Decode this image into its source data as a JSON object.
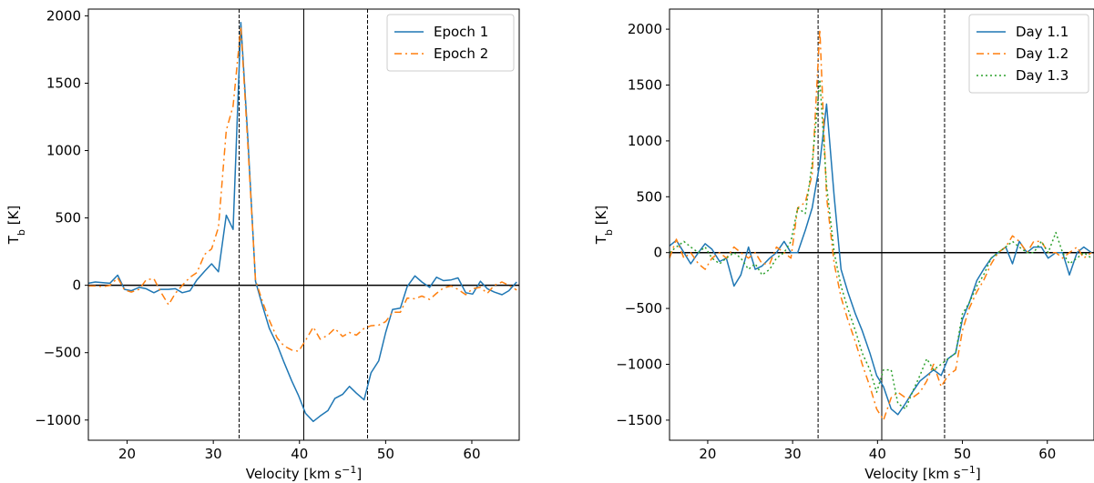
{
  "chart_data": [
    {
      "type": "line",
      "xlabel": "Velocity [km s$^{-1}$]",
      "ylabel": "T$_b$ [K]",
      "xlim": [
        15.5,
        65.5
      ],
      "ylim": [
        -1150,
        2050
      ],
      "xticks": [
        20,
        30,
        40,
        50,
        60
      ],
      "yticks": [
        -1000,
        -500,
        0,
        500,
        1000,
        1500,
        2000
      ],
      "ytick_labels": [
        "−1000",
        "−500",
        "0",
        "500",
        "1000",
        "1500",
        "2000"
      ],
      "hlines": [
        0
      ],
      "vlines": [
        {
          "x": 33.0,
          "style": "dashed"
        },
        {
          "x": 40.5,
          "style": "solid"
        },
        {
          "x": 47.9,
          "style": "dashed"
        }
      ],
      "legend_position": "top-right",
      "grid": false,
      "x": [
        15.5,
        16.3,
        17.2,
        18.0,
        18.9,
        19.7,
        20.5,
        21.4,
        22.2,
        23.1,
        23.9,
        24.8,
        25.6,
        26.4,
        27.3,
        28.1,
        29.0,
        29.8,
        30.6,
        31.5,
        32.3,
        33.2,
        34.0,
        34.9,
        35.7,
        36.5,
        37.4,
        38.2,
        39.1,
        39.9,
        40.7,
        41.6,
        42.4,
        43.3,
        44.1,
        45.0,
        45.8,
        46.6,
        47.5,
        48.3,
        49.2,
        50.0,
        50.8,
        51.7,
        52.5,
        53.4,
        54.2,
        55.1,
        55.9,
        56.7,
        57.6,
        58.4,
        59.3,
        60.1,
        61.0,
        61.8,
        62.6,
        63.5,
        64.3,
        65.2
      ],
      "series": [
        {
          "name": "Epoch 1",
          "color": "#1f77b4",
          "dash": "solid",
          "values": [
            15,
            25,
            20,
            15,
            75,
            -30,
            -40,
            -15,
            -25,
            -55,
            -30,
            -30,
            -25,
            -55,
            -40,
            40,
            105,
            160,
            100,
            520,
            415,
            1950,
            1100,
            30,
            -150,
            -320,
            -440,
            -570,
            -710,
            -820,
            -950,
            -1010,
            -970,
            -930,
            -840,
            -810,
            -750,
            -800,
            -850,
            -650,
            -560,
            -350,
            -180,
            -170,
            -10,
            70,
            25,
            -15,
            60,
            35,
            40,
            55,
            -55,
            -65,
            30,
            -25,
            -50,
            -70,
            -40,
            25
          ]
        },
        {
          "name": "Epoch 2",
          "color": "#ff7f0e",
          "dash": "8,4,2,4",
          "values": [
            -5,
            -5,
            -10,
            0,
            55,
            -35,
            -50,
            -30,
            40,
            50,
            -50,
            -145,
            -60,
            0,
            60,
            95,
            230,
            270,
            430,
            1150,
            1330,
            1920,
            1050,
            40,
            -120,
            -260,
            -390,
            -450,
            -480,
            -490,
            -410,
            -310,
            -400,
            -370,
            -320,
            -380,
            -350,
            -370,
            -320,
            -300,
            -295,
            -270,
            -200,
            -200,
            -95,
            -100,
            -80,
            -105,
            -60,
            -20,
            -5,
            -30,
            -70,
            -25,
            -15,
            -60,
            0,
            25,
            0,
            -35
          ]
        }
      ]
    },
    {
      "type": "line",
      "xlabel": "Velocity [km s$^{-1}$]",
      "ylabel": "T$_b$ [K]",
      "xlim": [
        15.5,
        65.5
      ],
      "ylim": [
        -1680,
        2180
      ],
      "xticks": [
        20,
        30,
        40,
        50,
        60
      ],
      "yticks": [
        -1500,
        -1000,
        -500,
        0,
        500,
        1000,
        1500,
        2000
      ],
      "ytick_labels": [
        "−1500",
        "−1000",
        "−500",
        "0",
        "500",
        "1000",
        "1500",
        "2000"
      ],
      "hlines": [
        0
      ],
      "vlines": [
        {
          "x": 33.0,
          "style": "dashed"
        },
        {
          "x": 40.5,
          "style": "solid"
        },
        {
          "x": 47.9,
          "style": "dashed"
        }
      ],
      "legend_position": "top-right",
      "grid": false,
      "x": [
        15.5,
        16.3,
        17.2,
        18.0,
        18.9,
        19.7,
        20.5,
        21.4,
        22.2,
        23.1,
        23.9,
        24.8,
        25.6,
        26.4,
        27.3,
        28.1,
        29.0,
        29.8,
        30.6,
        31.5,
        32.3,
        33.2,
        34.0,
        34.9,
        35.7,
        36.5,
        37.4,
        38.2,
        39.1,
        39.9,
        40.7,
        41.6,
        42.4,
        43.3,
        44.1,
        45.0,
        45.8,
        46.6,
        47.5,
        48.3,
        49.2,
        50.0,
        50.8,
        51.7,
        52.5,
        53.4,
        54.2,
        55.1,
        55.9,
        56.7,
        57.6,
        58.4,
        59.3,
        60.1,
        61.0,
        61.8,
        62.6,
        63.5,
        64.3,
        65.2
      ],
      "series": [
        {
          "name": "Day 1.1",
          "color": "#1f77b4",
          "dash": "solid",
          "values": [
            60,
            110,
            0,
            -100,
            0,
            80,
            30,
            -80,
            -50,
            -300,
            -200,
            50,
            -150,
            -120,
            -50,
            0,
            100,
            0,
            0,
            200,
            400,
            800,
            1330,
            500,
            -150,
            -350,
            -550,
            -700,
            -900,
            -1100,
            -1200,
            -1400,
            -1450,
            -1350,
            -1250,
            -1150,
            -1100,
            -1050,
            -1100,
            -950,
            -900,
            -600,
            -450,
            -250,
            -150,
            -50,
            0,
            50,
            -100,
            100,
            0,
            50,
            50,
            -50,
            0,
            0,
            -200,
            0,
            50,
            0
          ]
        },
        {
          "name": "Day 1.2",
          "color": "#ff7f0e",
          "dash": "8,4,2,4",
          "values": [
            -50,
            120,
            -50,
            0,
            -100,
            -150,
            -50,
            0,
            -50,
            50,
            0,
            -50,
            0,
            -100,
            -100,
            50,
            0,
            -50,
            400,
            450,
            700,
            2000,
            500,
            -100,
            -400,
            -600,
            -800,
            -1000,
            -1200,
            -1400,
            -1500,
            -1300,
            -1250,
            -1300,
            -1300,
            -1250,
            -1150,
            -1000,
            -1200,
            -1100,
            -1050,
            -700,
            -500,
            -350,
            -250,
            -100,
            0,
            50,
            150,
            100,
            0,
            100,
            100,
            0,
            0,
            -50,
            0,
            50,
            -50,
            0
          ]
        },
        {
          "name": "Day 1.3",
          "color": "#2ca02c",
          "dash": "2,3",
          "values": [
            0,
            50,
            100,
            50,
            0,
            50,
            -50,
            -100,
            -50,
            0,
            -50,
            -150,
            -100,
            -200,
            -150,
            -50,
            0,
            100,
            400,
            350,
            800,
            1550,
            600,
            0,
            -300,
            -500,
            -700,
            -900,
            -1050,
            -1250,
            -1050,
            -1050,
            -1350,
            -1400,
            -1250,
            -1100,
            -950,
            -1050,
            -1000,
            -950,
            -900,
            -550,
            -450,
            -300,
            -200,
            -50,
            0,
            50,
            100,
            50,
            0,
            0,
            100,
            0,
            180,
            0,
            -100,
            -50,
            0,
            -50
          ]
        }
      ]
    }
  ]
}
